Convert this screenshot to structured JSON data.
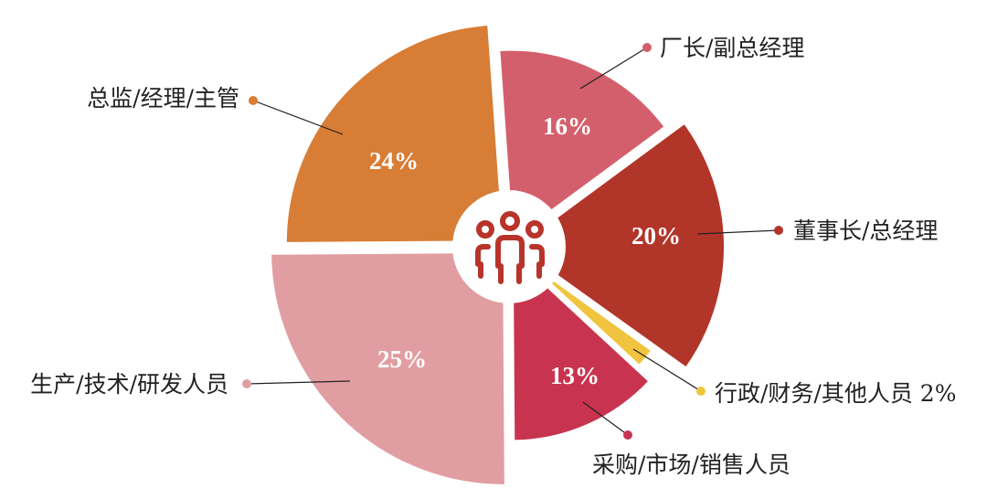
{
  "chart_data": {
    "type": "pie",
    "variant": "exploded rose (radius varies per slice)",
    "start_angle_deg": -4,
    "center_icon": "people-group-icon",
    "center_icon_color": "#b8342a",
    "legend": "none (leader-line labels)",
    "slices": [
      {
        "label": "厂长/副总经理",
        "value": 16,
        "display": "16%",
        "color": "#d45f6c"
      },
      {
        "label": "董事长/总经理",
        "value": 20,
        "display": "20%",
        "color": "#b23529"
      },
      {
        "label": "行政/财务/其他人员 2%",
        "value": 2,
        "display": "",
        "color": "#f0c43e"
      },
      {
        "label": "采购/市场/销售人员",
        "value": 13,
        "display": "13%",
        "color": "#c8344f"
      },
      {
        "label": "生产/技术/研发人员",
        "value": 25,
        "display": "25%",
        "color": "#e19ea2"
      },
      {
        "label": "总监/经理/主管",
        "value": 24,
        "display": "24%",
        "color": "#d87d35"
      }
    ]
  }
}
